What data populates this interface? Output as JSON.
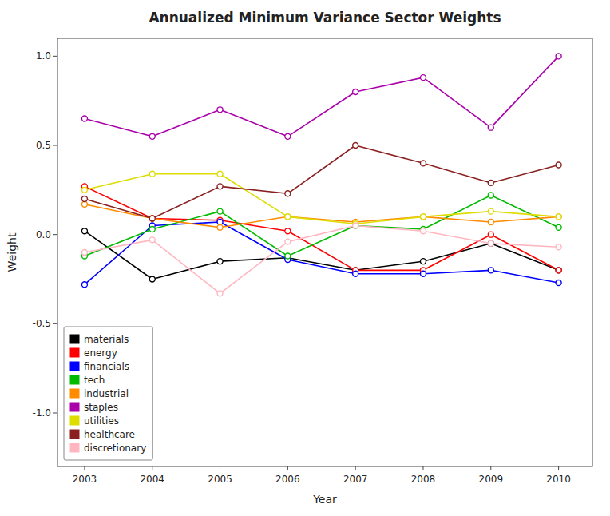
{
  "chart_data": {
    "type": "line",
    "title": "Annualized Minimum Variance Sector Weights",
    "x_label": "Year",
    "y_label": "Weight",
    "x": [
      2003,
      2004,
      2005,
      2006,
      2007,
      2008,
      2009,
      2010
    ],
    "series": [
      {
        "name": "materials",
        "color": "#000000",
        "marker": "circle",
        "values": [
          0.02,
          -0.25,
          -0.15,
          -0.13,
          -0.2,
          -0.15,
          -0.05,
          -0.2
        ]
      },
      {
        "name": "energy",
        "color": "#FF0000",
        "marker": "circle",
        "values": [
          0.27,
          0.09,
          0.08,
          0.02,
          -0.2,
          -0.2,
          0.0,
          -0.2
        ]
      },
      {
        "name": "financials",
        "color": "#0000FF",
        "marker": "circle",
        "values": [
          -0.28,
          0.05,
          0.07,
          -0.14,
          -0.22,
          -0.22,
          -0.2,
          -0.27
        ]
      },
      {
        "name": "tech",
        "color": "#00BB00",
        "marker": "circle",
        "values": [
          -0.12,
          0.03,
          0.13,
          -0.12,
          0.05,
          0.03,
          0.22,
          0.04
        ]
      },
      {
        "name": "industrial",
        "color": "#FF8C00",
        "marker": "circle",
        "values": [
          0.17,
          0.09,
          0.04,
          0.1,
          0.07,
          0.1,
          0.07,
          0.1
        ]
      },
      {
        "name": "staples",
        "color": "#AA00AA",
        "marker": "circle",
        "values": [
          0.65,
          0.55,
          0.7,
          0.55,
          0.8,
          0.88,
          0.6,
          1.0
        ]
      },
      {
        "name": "utilities",
        "color": "#DDDD00",
        "marker": "circle",
        "values": [
          0.25,
          0.34,
          0.34,
          0.1,
          0.06,
          0.1,
          0.13,
          0.1
        ]
      },
      {
        "name": "healthcare",
        "color": "#8B2020",
        "marker": "circle",
        "values": [
          0.2,
          0.09,
          0.27,
          0.23,
          0.5,
          0.4,
          0.29,
          0.39
        ]
      },
      {
        "name": "discretionary",
        "color": "#FFB6C1",
        "marker": "circle",
        "values": [
          -0.1,
          -0.03,
          -0.33,
          -0.04,
          0.05,
          0.02,
          -0.05,
          -0.07
        ]
      }
    ],
    "xlim": [
      2002.6,
      2010.5
    ],
    "xticks": [
      2003,
      2004,
      2005,
      2006,
      2007,
      2008,
      2009,
      2010
    ],
    "ylim": [
      -1.3,
      1.1
    ],
    "yticks": [
      {
        "value": -1.0,
        "label": "-1.0"
      },
      -0.5,
      {
        "value": 0.0,
        "label": "0.0"
      },
      0.5,
      {
        "value": 1.0,
        "label": "1.0"
      }
    ],
    "grid": false,
    "legend": "lower left"
  }
}
